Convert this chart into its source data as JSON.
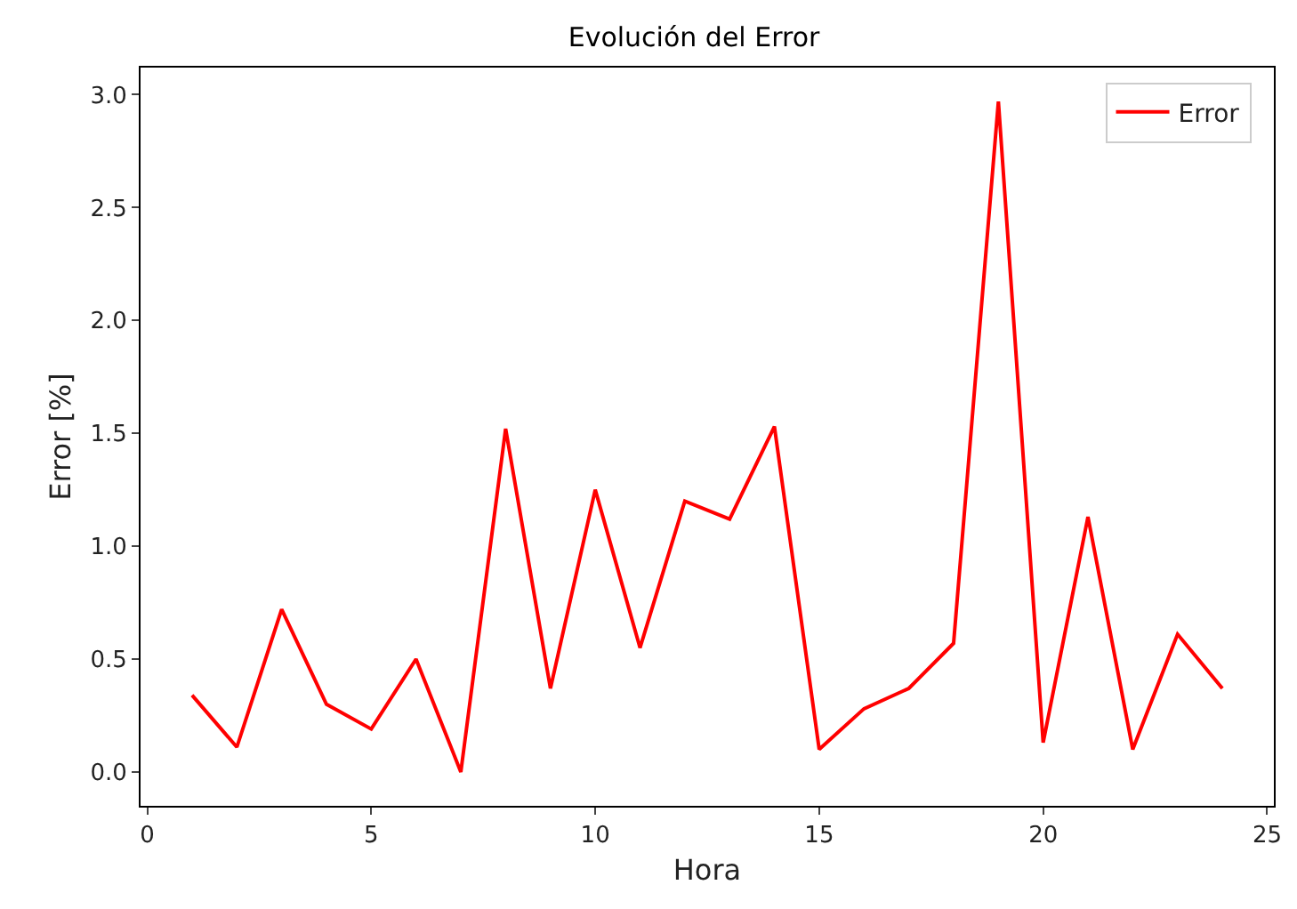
{
  "chart_data": {
    "type": "line",
    "title": "Evolución del Error",
    "xlabel": "Hora",
    "ylabel": "Error [%]",
    "x": [
      1,
      2,
      3,
      4,
      5,
      6,
      7,
      8,
      9,
      10,
      11,
      12,
      13,
      14,
      15,
      16,
      17,
      18,
      19,
      20,
      21,
      22,
      23,
      24
    ],
    "series": [
      {
        "name": "Error",
        "color": "#ff0000",
        "values": [
          0.34,
          0.11,
          0.72,
          0.3,
          0.19,
          0.5,
          0.0,
          1.52,
          0.37,
          1.25,
          0.55,
          1.2,
          1.12,
          1.53,
          0.1,
          0.28,
          0.37,
          0.57,
          2.97,
          0.13,
          1.13,
          0.1,
          0.61,
          0.37
        ]
      }
    ],
    "xlim": [
      -0.15,
      25.15
    ],
    "ylim": [
      -0.15,
      3.12
    ],
    "xticks": [
      0,
      5,
      10,
      15,
      20,
      25
    ],
    "yticks": [
      {
        "value": 0,
        "label": "0.0"
      },
      {
        "value": 0.5,
        "label": "0.5"
      },
      {
        "value": 1,
        "label": "1.0"
      },
      {
        "value": 1.5,
        "label": "1.5"
      },
      {
        "value": 2,
        "label": "2.0"
      },
      {
        "value": 2.5,
        "label": "2.5"
      },
      {
        "value": 3,
        "label": "3.0"
      }
    ],
    "grid": false,
    "legend": "top right",
    "line_style": "solid"
  }
}
